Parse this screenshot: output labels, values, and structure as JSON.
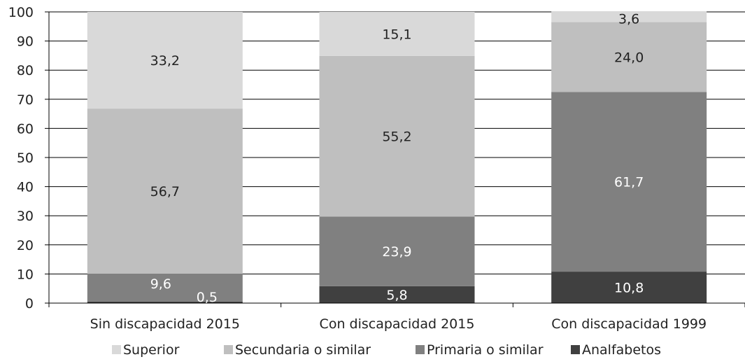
{
  "chart_data": {
    "type": "bar",
    "stacked": true,
    "categories": [
      "Sin discapacidad 2015",
      "Con discapacidad 2015",
      "Con discapacidad 1999"
    ],
    "series": [
      {
        "name": "Analfabetos",
        "color": "#404040",
        "values": [
          0.5,
          5.8,
          10.8
        ],
        "labels": [
          "0,5",
          "5,8",
          "10,8"
        ],
        "label_color": "#ffffff"
      },
      {
        "name": "Primaria o similar",
        "color": "#808080",
        "values": [
          9.6,
          23.9,
          61.7
        ],
        "labels": [
          "9,6",
          "23,9",
          "61,7"
        ],
        "label_color": "#ffffff"
      },
      {
        "name": "Secundaria o similar",
        "color": "#bfbfbf",
        "values": [
          56.7,
          55.2,
          24.0
        ],
        "labels": [
          "56,7",
          "55,2",
          "24,0"
        ],
        "label_color": "#222222"
      },
      {
        "name": "Superior",
        "color": "#d9d9d9",
        "values": [
          33.2,
          15.1,
          3.6
        ],
        "labels": [
          "33,2",
          "15,1",
          "3,6"
        ],
        "label_color": "#222222"
      }
    ],
    "ylim": [
      0,
      100
    ],
    "yticks": [
      "0",
      "10",
      "20",
      "30",
      "40",
      "50",
      "60",
      "70",
      "80",
      "90",
      "100"
    ],
    "grid": true,
    "legend_order": [
      "Superior",
      "Secundaria o similar",
      "Primaria o similar",
      "Analfabetos"
    ],
    "legend_position": "bottom"
  }
}
